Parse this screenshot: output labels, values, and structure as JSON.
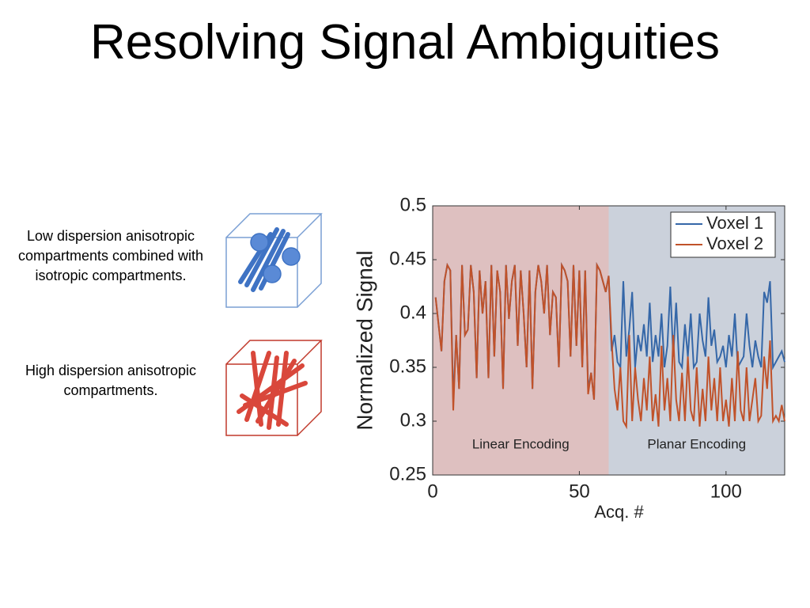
{
  "title": "Resolving Signal Ambiguities",
  "captions": [
    "Low dispersion anisotropic compartments combined with isotropic compartments.",
    "High dispersion anisotropic compartments."
  ],
  "chart_data": {
    "type": "line",
    "xlabel": "Acq. #",
    "ylabel": "Normalized Signal",
    "x": [
      1,
      2,
      3,
      4,
      5,
      6,
      7,
      8,
      9,
      10,
      11,
      12,
      13,
      14,
      15,
      16,
      17,
      18,
      19,
      20,
      21,
      22,
      23,
      24,
      25,
      26,
      27,
      28,
      29,
      30,
      31,
      32,
      33,
      34,
      35,
      36,
      37,
      38,
      39,
      40,
      41,
      42,
      43,
      44,
      45,
      46,
      47,
      48,
      49,
      50,
      51,
      52,
      53,
      54,
      55,
      56,
      57,
      58,
      59,
      60,
      61,
      62,
      63,
      64,
      65,
      66,
      67,
      68,
      69,
      70,
      71,
      72,
      73,
      74,
      75,
      76,
      77,
      78,
      79,
      80,
      81,
      82,
      83,
      84,
      85,
      86,
      87,
      88,
      89,
      90,
      91,
      92,
      93,
      94,
      95,
      96,
      97,
      98,
      99,
      100,
      101,
      102,
      103,
      104,
      105,
      106,
      107,
      108,
      109,
      110,
      111,
      112,
      113,
      114,
      115,
      116,
      117,
      118,
      119,
      120
    ],
    "series": [
      {
        "name": "Voxel 1",
        "color": "#3567a8",
        "values": [
          0.415,
          0.39,
          0.365,
          0.43,
          0.445,
          0.44,
          0.32,
          0.38,
          0.33,
          0.445,
          0.38,
          0.385,
          0.445,
          0.42,
          0.34,
          0.44,
          0.4,
          0.43,
          0.34,
          0.445,
          0.36,
          0.44,
          0.42,
          0.33,
          0.445,
          0.395,
          0.43,
          0.445,
          0.37,
          0.44,
          0.4,
          0.35,
          0.44,
          0.33,
          0.42,
          0.445,
          0.43,
          0.4,
          0.445,
          0.38,
          0.42,
          0.415,
          0.35,
          0.445,
          0.44,
          0.43,
          0.36,
          0.445,
          0.37,
          0.44,
          0.35,
          0.44,
          0.33,
          0.345,
          0.32,
          0.445,
          0.44,
          0.43,
          0.42,
          0.435,
          0.365,
          0.38,
          0.355,
          0.35,
          0.43,
          0.36,
          0.385,
          0.42,
          0.35,
          0.38,
          0.365,
          0.39,
          0.36,
          0.41,
          0.355,
          0.38,
          0.36,
          0.4,
          0.35,
          0.37,
          0.425,
          0.36,
          0.41,
          0.355,
          0.35,
          0.39,
          0.36,
          0.4,
          0.35,
          0.355,
          0.4,
          0.375,
          0.36,
          0.415,
          0.37,
          0.385,
          0.355,
          0.36,
          0.37,
          0.35,
          0.38,
          0.36,
          0.4,
          0.35,
          0.355,
          0.36,
          0.4,
          0.37,
          0.35,
          0.375,
          0.36,
          0.35,
          0.42,
          0.41,
          0.43,
          0.35,
          0.355,
          0.36,
          0.365,
          0.355
        ]
      },
      {
        "name": "Voxel 2",
        "color": "#c0522a",
        "values": [
          0.415,
          0.39,
          0.365,
          0.43,
          0.445,
          0.44,
          0.31,
          0.38,
          0.33,
          0.445,
          0.38,
          0.385,
          0.445,
          0.42,
          0.34,
          0.44,
          0.4,
          0.43,
          0.34,
          0.445,
          0.36,
          0.44,
          0.42,
          0.33,
          0.445,
          0.395,
          0.43,
          0.445,
          0.37,
          0.44,
          0.4,
          0.35,
          0.44,
          0.33,
          0.42,
          0.445,
          0.43,
          0.4,
          0.445,
          0.38,
          0.42,
          0.415,
          0.35,
          0.445,
          0.44,
          0.43,
          0.36,
          0.445,
          0.37,
          0.44,
          0.35,
          0.44,
          0.325,
          0.345,
          0.32,
          0.445,
          0.44,
          0.43,
          0.42,
          0.435,
          0.375,
          0.33,
          0.31,
          0.35,
          0.3,
          0.295,
          0.38,
          0.3,
          0.35,
          0.32,
          0.3,
          0.34,
          0.31,
          0.36,
          0.3,
          0.325,
          0.295,
          0.37,
          0.31,
          0.34,
          0.3,
          0.38,
          0.32,
          0.3,
          0.345,
          0.3,
          0.36,
          0.31,
          0.3,
          0.35,
          0.295,
          0.33,
          0.3,
          0.36,
          0.31,
          0.34,
          0.3,
          0.35,
          0.3,
          0.32,
          0.295,
          0.34,
          0.3,
          0.365,
          0.31,
          0.3,
          0.35,
          0.3,
          0.32,
          0.34,
          0.3,
          0.305,
          0.36,
          0.33,
          0.375,
          0.3,
          0.305,
          0.3,
          0.315,
          0.3
        ]
      }
    ],
    "regions": [
      {
        "name": "Linear Encoding",
        "xlim": [
          0,
          60
        ],
        "color": "#dec0c0"
      },
      {
        "name": "Planar Encoding",
        "xlim": [
          60,
          120
        ],
        "color": "#cbd1db"
      }
    ],
    "xlim": [
      0,
      120
    ],
    "xticks": [
      0,
      50,
      100
    ],
    "ylim": [
      0.25,
      0.5
    ],
    "yticks": [
      0.25,
      0.3,
      0.35,
      0.4,
      0.45,
      0.5
    ],
    "legend": "upper right"
  }
}
